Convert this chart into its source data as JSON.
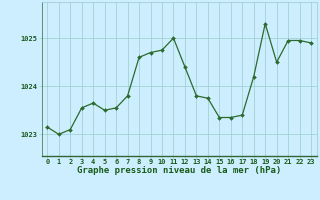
{
  "x": [
    0,
    1,
    2,
    3,
    4,
    5,
    6,
    7,
    8,
    9,
    10,
    11,
    12,
    13,
    14,
    15,
    16,
    17,
    18,
    19,
    20,
    21,
    22,
    23
  ],
  "y": [
    1023.15,
    1023.0,
    1023.1,
    1023.55,
    1023.65,
    1023.5,
    1023.55,
    1023.8,
    1024.6,
    1024.7,
    1024.75,
    1025.0,
    1024.4,
    1023.8,
    1023.75,
    1023.35,
    1023.35,
    1023.4,
    1024.2,
    1025.3,
    1024.5,
    1024.95,
    1024.95,
    1024.9
  ],
  "line_color": "#2d6a2d",
  "marker_color": "#2d6a2d",
  "bg_color": "#cceeff",
  "grid_color": "#99cccc",
  "title": "Graphe pression niveau de la mer (hPa)",
  "title_color": "#1a5c1a",
  "ytick_labels": [
    "1023",
    "1024",
    "1025"
  ],
  "ytick_vals": [
    1023,
    1024,
    1025
  ],
  "xlim": [
    -0.5,
    23.5
  ],
  "ylim": [
    1022.55,
    1025.75
  ],
  "title_fontsize": 6.5,
  "tick_fontsize": 5.0,
  "bottom_color": "#336633"
}
